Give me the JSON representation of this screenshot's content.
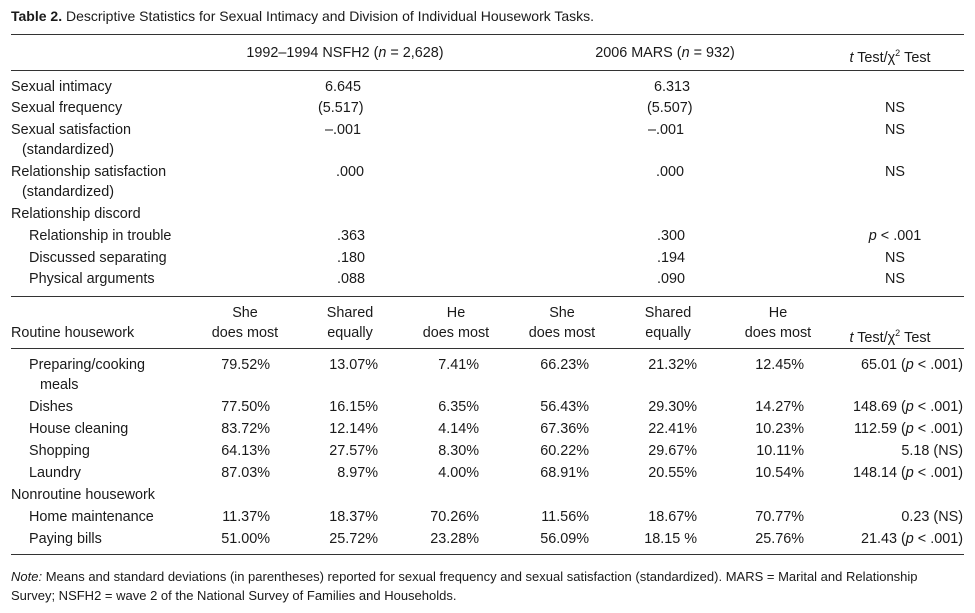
{
  "caption": {
    "label": "Table 2.",
    "text": "Descriptive Statistics for Sexual Intimacy and Division of Individual Housework Tasks."
  },
  "header": {
    "group1_pre": "1992–1994 NSFH2 (",
    "group1_n": "n",
    "group1_post": " = 2,628)",
    "group2_pre": "2006 MARS (",
    "group2_n": "n",
    "group2_post": " = 932)",
    "test_t": "t",
    "test_rest": " Test/χ",
    "test_sup": "2",
    "test_end": " Test"
  },
  "intimacy_rows": [
    {
      "label": "Sexual intimacy",
      "nsfh": "6.645",
      "mars": "6.313",
      "test": ""
    },
    {
      "label": "Sexual frequency",
      "nsfh": "(5.517)",
      "mars": "(5.507)",
      "test": "NS"
    },
    {
      "label": "Sexual satisfaction",
      "label2": "(standardized)",
      "nsfh": "–.001",
      "mars": "–.001",
      "test": "NS"
    },
    {
      "label": "Relationship satisfaction",
      "label2": "(standardized)",
      "nsfh": ".000",
      "mars": ".000",
      "test": "NS"
    },
    {
      "label": "Relationship discord"
    },
    {
      "label": "Relationship in trouble",
      "nsfh": ".363",
      "mars": ".300",
      "test_p": "p",
      "test_rest": " < .001"
    },
    {
      "label": "Discussed separating",
      "nsfh": ".180",
      "mars": ".194",
      "test": "NS"
    },
    {
      "label": "Physical arguments",
      "nsfh": ".088",
      "mars": ".090",
      "test": "NS"
    }
  ],
  "housework_header": {
    "row_label": "Routine housework",
    "cols": [
      {
        "l1": "She",
        "l2": "does most"
      },
      {
        "l1": "Shared",
        "l2": "equally"
      },
      {
        "l1": "He",
        "l2": "does most"
      },
      {
        "l1": "She",
        "l2": "does most"
      },
      {
        "l1": "Shared",
        "l2": "equally"
      },
      {
        "l1": "He",
        "l2": "does most"
      }
    ],
    "test_t": "t",
    "test_rest": " Test/χ",
    "test_sup": "2",
    "test_end": " Test"
  },
  "housework_rows": [
    {
      "label": "Preparing/cooking",
      "label2": "meals",
      "v": [
        "79.52%",
        "13.07%",
        "7.41%",
        "66.23%",
        "21.32%",
        "12.45%"
      ],
      "t_val": "65.01 (",
      "t_p": "p",
      "t_rest": " < .001)"
    },
    {
      "label": "Dishes",
      "v": [
        "77.50%",
        "16.15%",
        "6.35%",
        "56.43%",
        "29.30%",
        "14.27%"
      ],
      "t_val": "148.69 (",
      "t_p": "p",
      "t_rest": " < .001)"
    },
    {
      "label": "House cleaning",
      "v": [
        "83.72%",
        "12.14%",
        "4.14%",
        "67.36%",
        "22.41%",
        "10.23%"
      ],
      "t_val": "112.59 (",
      "t_p": "p",
      "t_rest": " < .001)"
    },
    {
      "label": "Shopping",
      "v": [
        "64.13%",
        "27.57%",
        "8.30%",
        "60.22%",
        "29.67%",
        "10.11%"
      ],
      "t_val": "5.18 (NS)",
      "t_p": "",
      "t_rest": ""
    },
    {
      "label": "Laundry",
      "v": [
        "87.03%",
        "8.97%",
        "4.00%",
        "68.91%",
        "20.55%",
        "10.54%"
      ],
      "t_val": "148.14 (",
      "t_p": "p",
      "t_rest": " < .001)"
    },
    {
      "label": "Nonroutine housework"
    },
    {
      "label": "Home maintenance",
      "v": [
        "11.37%",
        "18.37%",
        "70.26%",
        "11.56%",
        "18.67%",
        "70.77%"
      ],
      "t_val": "0.23 (NS)",
      "t_p": "",
      "t_rest": ""
    },
    {
      "label": "Paying bills",
      "v": [
        "51.00%",
        "25.72%",
        "23.28%",
        "56.09%",
        "18.15 %",
        "25.76%"
      ],
      "t_val": "21.43 (",
      "t_p": "p",
      "t_rest": " < .001)"
    }
  ],
  "note": {
    "lead": "Note:",
    "text": " Means and standard deviations (in parentheses) reported for sexual frequency and sexual satisfaction (standardized). MARS = Marital and Relationship Survey; NSFH2 = wave 2 of the National Survey of Families and Households."
  }
}
